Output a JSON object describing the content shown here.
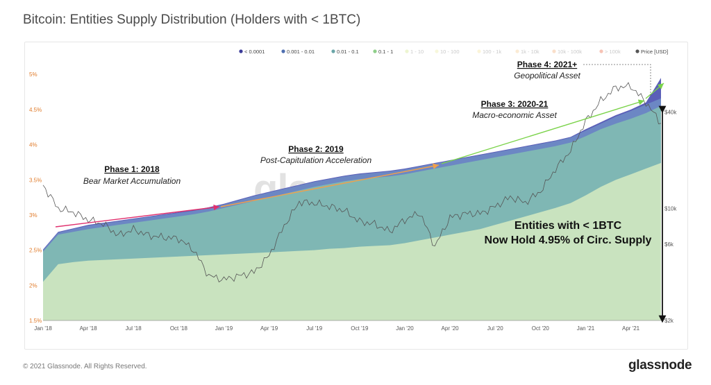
{
  "page": {
    "title": "Bitcoin: Entities Supply Distribution (Holders with < 1BTC)",
    "copyright": "© 2021 Glassnode. All Rights Reserved.",
    "brand": "glassnode",
    "watermark": "glassnode"
  },
  "chart_data": {
    "type": "area",
    "x_tick_labels": [
      "Jan '18",
      "Apr '18",
      "Jul '18",
      "Oct '18",
      "Jan '19",
      "Apr '19",
      "Jul '19",
      "Oct '19",
      "Jan '20",
      "Apr '20",
      "Jul '20",
      "Oct '20",
      "Jan '21",
      "Apr '21"
    ],
    "x_months": [
      "2018-01",
      "2018-02",
      "2018-03",
      "2018-04",
      "2018-05",
      "2018-06",
      "2018-07",
      "2018-08",
      "2018-09",
      "2018-10",
      "2018-11",
      "2018-12",
      "2019-01",
      "2019-02",
      "2019-03",
      "2019-04",
      "2019-05",
      "2019-06",
      "2019-07",
      "2019-08",
      "2019-09",
      "2019-10",
      "2019-11",
      "2019-12",
      "2020-01",
      "2020-02",
      "2020-03",
      "2020-04",
      "2020-05",
      "2020-06",
      "2020-07",
      "2020-08",
      "2020-09",
      "2020-10",
      "2020-11",
      "2020-12",
      "2021-01",
      "2021-02",
      "2021-03",
      "2021-04",
      "2021-05",
      "2021-06"
    ],
    "y_left_ticks": [
      "1.5%",
      "2%",
      "2.5%",
      "3%",
      "3.5%",
      "4%",
      "4.5%",
      "5%"
    ],
    "ylim_left": [
      1.5,
      5.15
    ],
    "y_right_ticks": [
      "$2k",
      "$6k",
      "$10k",
      "$40k"
    ],
    "y_right_values": [
      2000,
      6000,
      10000,
      40000
    ],
    "ylim_right": [
      2000,
      80000
    ],
    "legend": [
      {
        "label": "< 0.0001",
        "color": "#3b3b98",
        "faded": false
      },
      {
        "label": "0.001 - 0.01",
        "color": "#4f6fb0",
        "faded": false
      },
      {
        "label": "0.01 - 0.1",
        "color": "#6ba6a8",
        "faded": false
      },
      {
        "label": "0.1 - 1",
        "color": "#8fcf8a",
        "faded": false
      },
      {
        "label": "1 - 10",
        "color": "#d6e89a",
        "faded": true
      },
      {
        "label": "10 - 100",
        "color": "#eeeeb0",
        "faded": true
      },
      {
        "label": "100 - 1k",
        "color": "#f6e7a9",
        "faded": true
      },
      {
        "label": "1k - 10k",
        "color": "#f6d3a0",
        "faded": true
      },
      {
        "label": "10k - 100k",
        "color": "#f3b98a",
        "faded": true
      },
      {
        "label": "> 100k",
        "color": "#ea7a5b",
        "faded": true
      },
      {
        "label": "Price [USD]",
        "color": "#555555",
        "faded": false
      }
    ],
    "series": [
      {
        "name": "0.1 - 1",
        "color": "#c9e3bf",
        "values": [
          2.05,
          2.3,
          2.33,
          2.35,
          2.36,
          2.37,
          2.38,
          2.39,
          2.4,
          2.41,
          2.42,
          2.43,
          2.44,
          2.45,
          2.46,
          2.47,
          2.48,
          2.49,
          2.5,
          2.52,
          2.53,
          2.55,
          2.56,
          2.57,
          2.6,
          2.64,
          2.68,
          2.72,
          2.76,
          2.8,
          2.86,
          2.92,
          2.98,
          3.04,
          3.1,
          3.17,
          3.28,
          3.4,
          3.5,
          3.58,
          3.66,
          3.74
        ]
      },
      {
        "name": "0.01 - 0.1",
        "color": "#7fb7b4",
        "values": [
          2.48,
          2.72,
          2.76,
          2.8,
          2.83,
          2.86,
          2.89,
          2.92,
          2.95,
          2.98,
          3.01,
          3.05,
          3.1,
          3.15,
          3.2,
          3.25,
          3.3,
          3.35,
          3.4,
          3.44,
          3.48,
          3.51,
          3.53,
          3.55,
          3.58,
          3.62,
          3.66,
          3.7,
          3.74,
          3.78,
          3.82,
          3.86,
          3.9,
          3.94,
          3.98,
          4.03,
          4.12,
          4.22,
          4.3,
          4.37,
          4.45,
          4.55
        ]
      },
      {
        "name": "0.001 - 0.01",
        "color": "#6c87c4",
        "values": [
          2.5,
          2.75,
          2.8,
          2.85,
          2.88,
          2.91,
          2.94,
          2.97,
          3.0,
          3.03,
          3.06,
          3.1,
          3.15,
          3.21,
          3.27,
          3.32,
          3.37,
          3.42,
          3.47,
          3.51,
          3.55,
          3.58,
          3.6,
          3.62,
          3.65,
          3.69,
          3.73,
          3.77,
          3.81,
          3.85,
          3.89,
          3.93,
          3.97,
          4.01,
          4.05,
          4.1,
          4.2,
          4.3,
          4.4,
          4.48,
          4.57,
          4.66
        ]
      },
      {
        "name": "< 0.0001",
        "color": "#5b5fb8",
        "values": [
          2.51,
          2.76,
          2.81,
          2.86,
          2.89,
          2.92,
          2.95,
          2.98,
          3.01,
          3.04,
          3.07,
          3.11,
          3.16,
          3.22,
          3.28,
          3.33,
          3.38,
          3.43,
          3.48,
          3.52,
          3.56,
          3.59,
          3.61,
          3.63,
          3.66,
          3.7,
          3.74,
          3.78,
          3.82,
          3.86,
          3.9,
          3.94,
          3.98,
          4.02,
          4.06,
          4.11,
          4.22,
          4.32,
          4.42,
          4.5,
          4.6,
          4.95
        ]
      },
      {
        "name": "Price [USD]",
        "color": "#555555",
        "values": [
          14000,
          10000,
          9500,
          8500,
          8000,
          6800,
          7400,
          6800,
          6600,
          6500,
          5500,
          3800,
          3600,
          3800,
          4000,
          5100,
          7800,
          11000,
          10800,
          10300,
          9700,
          8300,
          8000,
          7200,
          8500,
          9400,
          5800,
          8800,
          9300,
          9300,
          10300,
          11800,
          10900,
          12800,
          17600,
          23000,
          35000,
          47000,
          57000,
          58000,
          46000,
          34000
        ]
      }
    ],
    "annotations": [
      {
        "title": "Phase 1: 2018",
        "subtitle": "Bear Market Accumulation",
        "color": "#e0306e"
      },
      {
        "title": "Phase 2: 2019",
        "subtitle": "Post-Capitulation Acceleration",
        "color": "#f0a04b"
      },
      {
        "title": "Phase 3: 2020-21",
        "subtitle": "Macro-economic Asset",
        "color": "#7bd34a"
      },
      {
        "title": "Phase 4: 2021+",
        "subtitle": "Geopolitical Asset",
        "color": "#7bd34a"
      }
    ],
    "callout_lines": [
      "Entities with < 1BTC",
      "Now Hold 4.95% of Circ. Supply"
    ]
  }
}
